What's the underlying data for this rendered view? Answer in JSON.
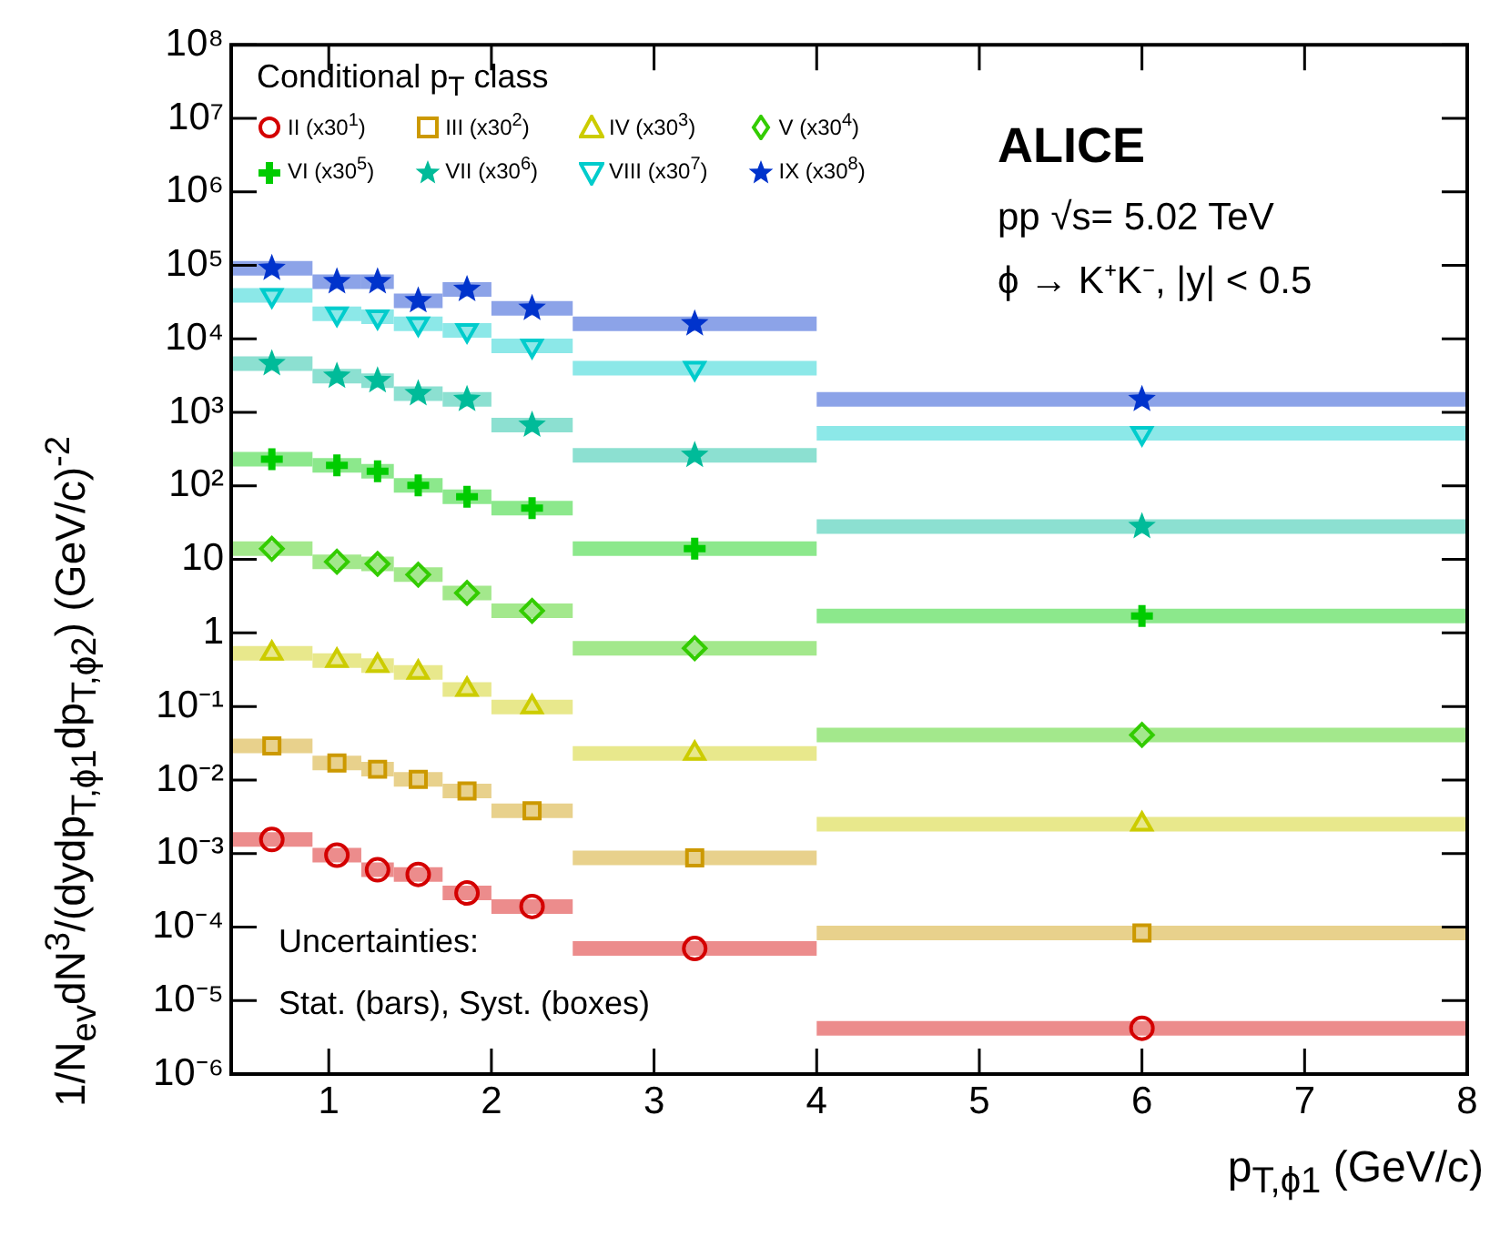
{
  "chart_data": {
    "type": "scatter",
    "xlabel": "p$_{T,ϕ1}$ (GeV/c)",
    "ylabel": "1/N$_{ev}$dN$^{3}$/(dydp$_{T,ϕ1}$dp$_{T,ϕ2}$) (GeV/c)$^{-2}$",
    "legend_title": "Conditional p$_{T}$ class",
    "annotations": [
      "ALICE",
      "pp √s= 5.02 TeV",
      "ϕ → K⁺K⁻, |y| < 0.5",
      "Uncertainties:",
      "Stat. (bars), Syst. (boxes)"
    ],
    "x": [
      0.65,
      1.05,
      1.3,
      1.55,
      1.85,
      2.25,
      3.25,
      6
    ],
    "series": [
      {
        "name": "II (x30$^{1}$)",
        "color": "#d40000",
        "marker": "circle",
        "values": [
          0.00155,
          0.00095,
          0.0006,
          0.00052,
          0.00029,
          0.00019,
          5.1e-05,
          4.2e-06
        ],
        "xerrors": [
          0.25,
          0.15,
          0.1,
          0.15,
          0.15,
          0.25,
          0.75,
          2
        ]
      },
      {
        "name": "III (x30$^{2}$)",
        "color": "#cc9900",
        "marker": "square",
        "values": [
          0.029,
          0.017,
          0.014,
          0.0102,
          0.0071,
          0.0038,
          0.00087,
          8.3e-05
        ],
        "xerrors": [
          0.25,
          0.15,
          0.1,
          0.15,
          0.15,
          0.25,
          0.75,
          2
        ]
      },
      {
        "name": "IV (x30$^{3}$)",
        "color": "#cccc00",
        "marker": "triangle",
        "values": [
          0.53,
          0.42,
          0.36,
          0.29,
          0.17,
          0.098,
          0.023,
          0.0025
        ],
        "xerrors": [
          0.25,
          0.15,
          0.1,
          0.15,
          0.15,
          0.25,
          0.75,
          2
        ]
      },
      {
        "name": "V (x30$^{4}$)",
        "color": "#33cc00",
        "marker": "diamond",
        "values": [
          14,
          9.3,
          8.7,
          6.2,
          3.5,
          2.0,
          0.62,
          0.041
        ],
        "xerrors": [
          0.25,
          0.15,
          0.1,
          0.15,
          0.15,
          0.25,
          0.75,
          2
        ]
      },
      {
        "name": "VI (x30$^{5}$)",
        "color": "#00cc00",
        "marker": "cross",
        "values": [
          230,
          190,
          158,
          102,
          71,
          50,
          14,
          1.7
        ],
        "xerrors": [
          0.25,
          0.15,
          0.1,
          0.15,
          0.15,
          0.25,
          0.75,
          2
        ]
      },
      {
        "name": "VII (x30$^{6}$)",
        "color": "#00bb99",
        "marker": "star",
        "values": [
          4600,
          3100,
          2700,
          1800,
          1500,
          670,
          260,
          28
        ],
        "xerrors": [
          0.25,
          0.15,
          0.1,
          0.15,
          0.15,
          0.25,
          0.75,
          2
        ]
      },
      {
        "name": "VIII (x30$^{7}$)",
        "color": "#00cccc",
        "marker": "triangle-down",
        "values": [
          39000,
          22000,
          20000,
          16000,
          13000,
          8000,
          4000,
          520
        ],
        "xerrors": [
          0.25,
          0.15,
          0.1,
          0.15,
          0.15,
          0.25,
          0.75,
          2
        ]
      },
      {
        "name": "IX (x30$^{8}$)",
        "color": "#0033cc",
        "marker": "star",
        "values": [
          91000,
          60000,
          60000,
          33000,
          47000,
          26000,
          16000,
          1500
        ],
        "xerrors": [
          0.25,
          0.15,
          0.1,
          0.15,
          0.15,
          0.25,
          0.75,
          2
        ]
      }
    ],
    "xlim": [
      0.4,
      8
    ],
    "xticks": [
      1,
      2,
      3,
      4,
      5,
      6,
      7,
      8
    ],
    "log": "y",
    "ylim": [
      1e-06,
      100000000
    ],
    "yticks": [
      {
        "value": 1e-06,
        "label": "10⁻⁶"
      },
      {
        "value": 1e-05,
        "label": "10⁻⁵"
      },
      {
        "value": 0.0001,
        "label": "10⁻⁴"
      },
      {
        "value": 0.001,
        "label": "10⁻³"
      },
      {
        "value": 0.01,
        "label": "10⁻²"
      },
      {
        "value": 0.1,
        "label": "10⁻¹"
      },
      1,
      10,
      {
        "value": 100,
        "label": "10²"
      },
      {
        "value": 1000,
        "label": "10³"
      },
      {
        "value": 10000,
        "label": "10⁴"
      },
      {
        "value": 100000,
        "label": "10⁵"
      },
      {
        "value": 1000000,
        "label": "10⁶"
      },
      {
        "value": 10000000,
        "label": "10⁷"
      },
      {
        "value": 100000000,
        "label": "10⁸"
      }
    ],
    "grid": false,
    "legend": "top left"
  }
}
